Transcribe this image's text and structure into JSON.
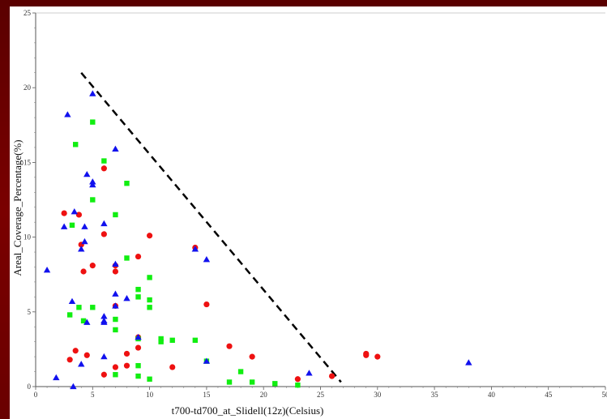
{
  "chart_data": {
    "type": "scatter",
    "title": "",
    "xlabel": "t700-td700_at_Slidell(12z)(Celsius)",
    "ylabel": "Areal_Coverage_Percentage(%)",
    "xlim": [
      0,
      50
    ],
    "ylim": [
      0,
      25
    ],
    "x_ticks": [
      0,
      5,
      10,
      15,
      20,
      25,
      30,
      35,
      40,
      45,
      50
    ],
    "y_ticks": [
      0,
      5,
      10,
      15,
      20,
      25
    ],
    "grid": false,
    "colors": {
      "red": "#ee1111",
      "green": "#11ee11",
      "blue": "#1111ee",
      "line": "#000000"
    },
    "series": [
      {
        "marker": "circle",
        "color": "#ee1111",
        "points": [
          [
            2.5,
            11.6
          ],
          [
            3.8,
            11.5
          ],
          [
            4.0,
            9.5
          ],
          [
            6.0,
            14.6
          ],
          [
            6.0,
            10.2
          ],
          [
            10.0,
            10.1
          ],
          [
            5.0,
            8.1
          ],
          [
            7.0,
            8.1
          ],
          [
            4.2,
            7.7
          ],
          [
            7.0,
            7.7
          ],
          [
            9.0,
            8.7
          ],
          [
            14.0,
            9.3
          ],
          [
            7.0,
            5.4
          ],
          [
            15.0,
            5.5
          ],
          [
            9.0,
            3.3
          ],
          [
            3.5,
            2.4
          ],
          [
            4.5,
            2.1
          ],
          [
            3.0,
            1.8
          ],
          [
            8.0,
            2.2
          ],
          [
            9.0,
            2.6
          ],
          [
            12.0,
            1.3
          ],
          [
            17.0,
            2.7
          ],
          [
            19.0,
            2.0
          ],
          [
            6.0,
            0.8
          ],
          [
            7.0,
            1.3
          ],
          [
            8.0,
            1.4
          ],
          [
            23.0,
            0.5
          ],
          [
            26.0,
            0.7
          ],
          [
            29.0,
            2.1
          ],
          [
            29.0,
            2.2
          ],
          [
            30.0,
            2.0
          ]
        ]
      },
      {
        "marker": "square",
        "color": "#11ee11",
        "points": [
          [
            3.5,
            16.2
          ],
          [
            5.0,
            17.7
          ],
          [
            6.0,
            15.1
          ],
          [
            8.0,
            13.6
          ],
          [
            5.0,
            12.5
          ],
          [
            7.0,
            11.5
          ],
          [
            3.2,
            10.8
          ],
          [
            8.0,
            8.6
          ],
          [
            10.0,
            7.3
          ],
          [
            9.0,
            6.5
          ],
          [
            9.0,
            6.0
          ],
          [
            10.0,
            5.8
          ],
          [
            10.0,
            5.3
          ],
          [
            3.8,
            5.3
          ],
          [
            5.0,
            5.3
          ],
          [
            3.0,
            4.8
          ],
          [
            4.2,
            4.4
          ],
          [
            7.0,
            4.5
          ],
          [
            7.0,
            3.8
          ],
          [
            9.0,
            3.2
          ],
          [
            11.0,
            3.2
          ],
          [
            11.0,
            3.0
          ],
          [
            12.0,
            3.1
          ],
          [
            14.0,
            3.1
          ],
          [
            15.0,
            1.7
          ],
          [
            9.0,
            1.4
          ],
          [
            18.0,
            1.0
          ],
          [
            7.0,
            0.8
          ],
          [
            9.0,
            0.7
          ],
          [
            10.0,
            0.5
          ],
          [
            17.0,
            0.3
          ],
          [
            19.0,
            0.3
          ],
          [
            21.0,
            0.2
          ],
          [
            23.0,
            0.1
          ]
        ]
      },
      {
        "marker": "triangle",
        "color": "#1111ee",
        "points": [
          [
            5.0,
            19.6
          ],
          [
            2.8,
            18.2
          ],
          [
            7.0,
            15.9
          ],
          [
            4.5,
            14.2
          ],
          [
            5.0,
            13.7
          ],
          [
            5.0,
            13.5
          ],
          [
            3.4,
            11.7
          ],
          [
            6.0,
            10.9
          ],
          [
            2.5,
            10.7
          ],
          [
            4.3,
            10.7
          ],
          [
            4.3,
            9.7
          ],
          [
            4.0,
            9.2
          ],
          [
            14.0,
            9.2
          ],
          [
            15.0,
            8.5
          ],
          [
            7.0,
            8.2
          ],
          [
            1.0,
            7.8
          ],
          [
            7.0,
            6.2
          ],
          [
            8.0,
            5.9
          ],
          [
            3.2,
            5.7
          ],
          [
            7.0,
            5.4
          ],
          [
            6.0,
            4.7
          ],
          [
            6.0,
            4.4
          ],
          [
            6.0,
            4.3
          ],
          [
            4.5,
            4.3
          ],
          [
            9.0,
            3.3
          ],
          [
            6.0,
            2.0
          ],
          [
            4.0,
            1.5
          ],
          [
            15.0,
            1.7
          ],
          [
            24.0,
            0.9
          ],
          [
            38.0,
            1.6
          ],
          [
            1.8,
            0.6
          ],
          [
            3.3,
            0.0
          ]
        ]
      }
    ],
    "reference_line": {
      "style": "dashed",
      "points": [
        [
          4.0,
          21.0
        ],
        [
          26.8,
          0.3
        ]
      ]
    }
  }
}
